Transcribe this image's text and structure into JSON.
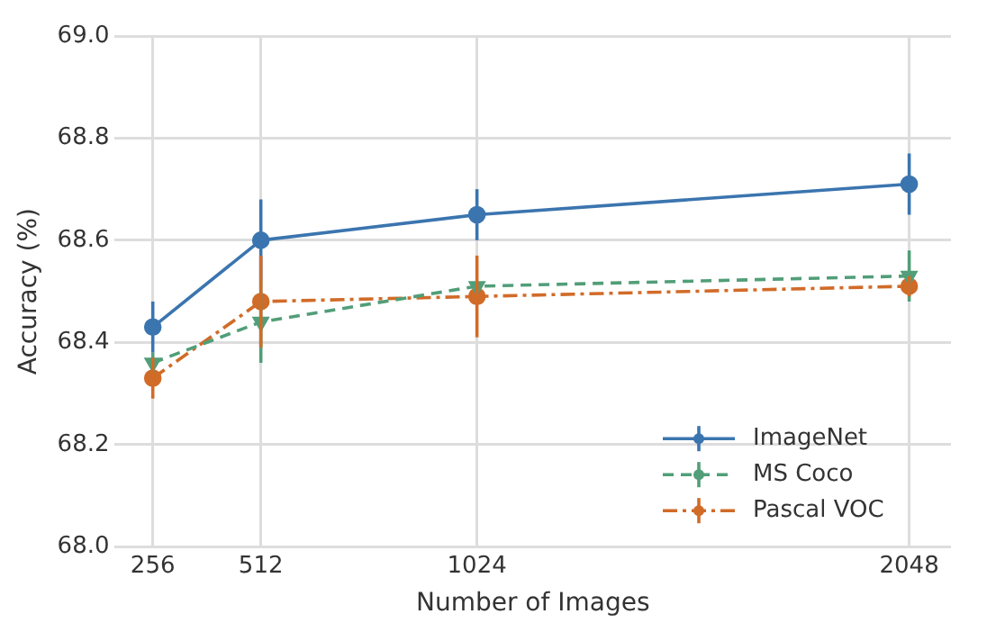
{
  "chart_data": {
    "type": "line",
    "xlabel": "Number of Images",
    "ylabel": "Accuracy (%)",
    "x": [
      256,
      512,
      1024,
      2048
    ],
    "xlim": [
      166,
      2147
    ],
    "xticks": [
      256,
      512,
      1024,
      2048
    ],
    "ylim": [
      68.0,
      69.0
    ],
    "yticks": [
      {
        "value": 68.0,
        "label": "68.0"
      },
      68.2,
      68.4,
      68.6,
      68.8,
      {
        "value": 69.0,
        "label": "69.0"
      }
    ],
    "grid": true,
    "legend": "bottom right",
    "series": [
      {
        "name": "ImageNet",
        "color": "#3b75af",
        "marker": "circle",
        "line_style": "solid",
        "values": [
          68.43,
          68.6,
          68.65,
          68.71
        ],
        "errors": [
          0.05,
          0.08,
          0.05,
          0.06
        ]
      },
      {
        "name": "MS Coco",
        "color": "#519e78",
        "marker": "triangle",
        "line_style": "dashed",
        "values": [
          68.36,
          68.44,
          68.51,
          68.53
        ],
        "errors": [
          0.02,
          0.08,
          null,
          0.05
        ]
      },
      {
        "name": "Pascal VOC",
        "color": "#d16b28",
        "marker": "circle",
        "line_style": "dashdot",
        "values": [
          68.33,
          68.48,
          68.49,
          68.51
        ],
        "errors": [
          0.04,
          0.09,
          0.08,
          0.02
        ]
      }
    ]
  }
}
